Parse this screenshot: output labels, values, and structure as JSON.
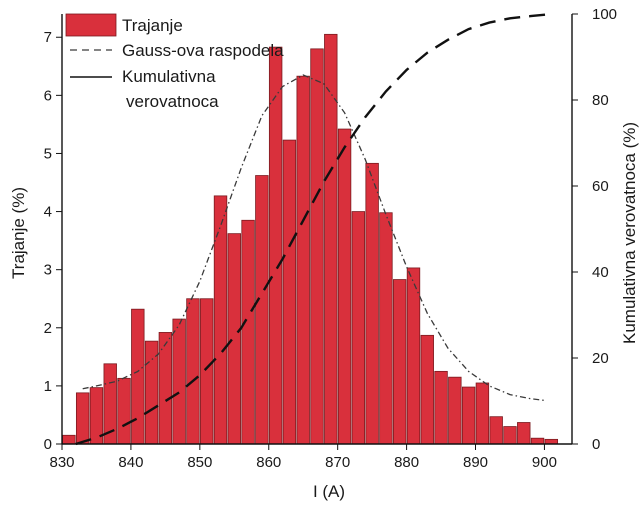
{
  "chart_data": {
    "type": "bar",
    "xlabel": "I (A)",
    "ylabel": "Trajanje (%)",
    "y2label": "Kumulativna verovatnoca (%)",
    "xlim": [
      830,
      904
    ],
    "ylim": [
      0,
      7.4
    ],
    "y2lim": [
      0,
      100
    ],
    "x_ticks": [
      830,
      840,
      850,
      860,
      870,
      880,
      890,
      900
    ],
    "y_ticks": [
      0,
      1,
      2,
      3,
      4,
      5,
      6,
      7
    ],
    "y2_ticks": [
      0,
      20,
      40,
      60,
      80,
      100
    ],
    "grid": false,
    "legend_position": "top-left",
    "colors": {
      "bar_fill": "#d9303c",
      "bar_stroke": "#7a1a1f",
      "gauss_line": "#3a3a3a",
      "cumulative_line": "#111111"
    },
    "legend": [
      {
        "label": "Trajanje",
        "kind": "bar"
      },
      {
        "label": "Gauss-ova raspodela",
        "kind": "dashed"
      },
      {
        "label": "Kumulativna\nverovatnoca",
        "kind": "solid"
      }
    ],
    "series": [
      {
        "name": "Trajanje",
        "type": "bar",
        "bin_width": 2,
        "x": [
          831,
          833,
          835,
          837,
          839,
          841,
          843,
          845,
          847,
          849,
          851,
          853,
          855,
          857,
          859,
          861,
          863,
          865,
          867,
          869,
          871,
          873,
          875,
          877,
          879,
          881,
          883,
          885,
          887,
          889,
          891,
          893,
          895,
          897,
          899,
          901
        ],
        "values": [
          0.15,
          0.88,
          0.97,
          1.38,
          1.13,
          2.32,
          1.77,
          1.92,
          2.15,
          2.5,
          2.5,
          4.27,
          3.62,
          3.85,
          4.62,
          6.83,
          5.23,
          6.33,
          6.8,
          7.05,
          5.42,
          4.0,
          4.83,
          3.98,
          2.83,
          3.03,
          1.87,
          1.25,
          1.15,
          0.98,
          1.05,
          0.47,
          0.3,
          0.37,
          0.1,
          0.08
        ]
      },
      {
        "name": "Gauss-ova raspodela",
        "type": "line",
        "axis": "left",
        "x": [
          833,
          835,
          838,
          841,
          844,
          847,
          850,
          853,
          856,
          859,
          862,
          865,
          868,
          871,
          874,
          877,
          880,
          883,
          886,
          889,
          892,
          895,
          898,
          900
        ],
        "values": [
          0.95,
          1.0,
          1.08,
          1.25,
          1.55,
          2.05,
          2.8,
          3.75,
          4.75,
          5.65,
          6.15,
          6.35,
          6.2,
          5.7,
          4.9,
          3.95,
          3.05,
          2.25,
          1.65,
          1.25,
          1.0,
          0.85,
          0.78,
          0.75
        ]
      },
      {
        "name": "Kumulativna verovatnoca",
        "type": "line",
        "axis": "right",
        "x": [
          832,
          835,
          838,
          841,
          844,
          847,
          850,
          853,
          856,
          859,
          862,
          865,
          868,
          871,
          874,
          877,
          880,
          883,
          886,
          889,
          892,
          895,
          898,
          901
        ],
        "values": [
          0,
          1.5,
          3.5,
          6,
          9,
          12,
          16,
          21,
          27,
          35,
          43,
          52,
          61,
          69,
          76,
          82,
          87,
          91,
          94,
          96.5,
          98,
          99,
          99.5,
          100
        ]
      }
    ]
  }
}
